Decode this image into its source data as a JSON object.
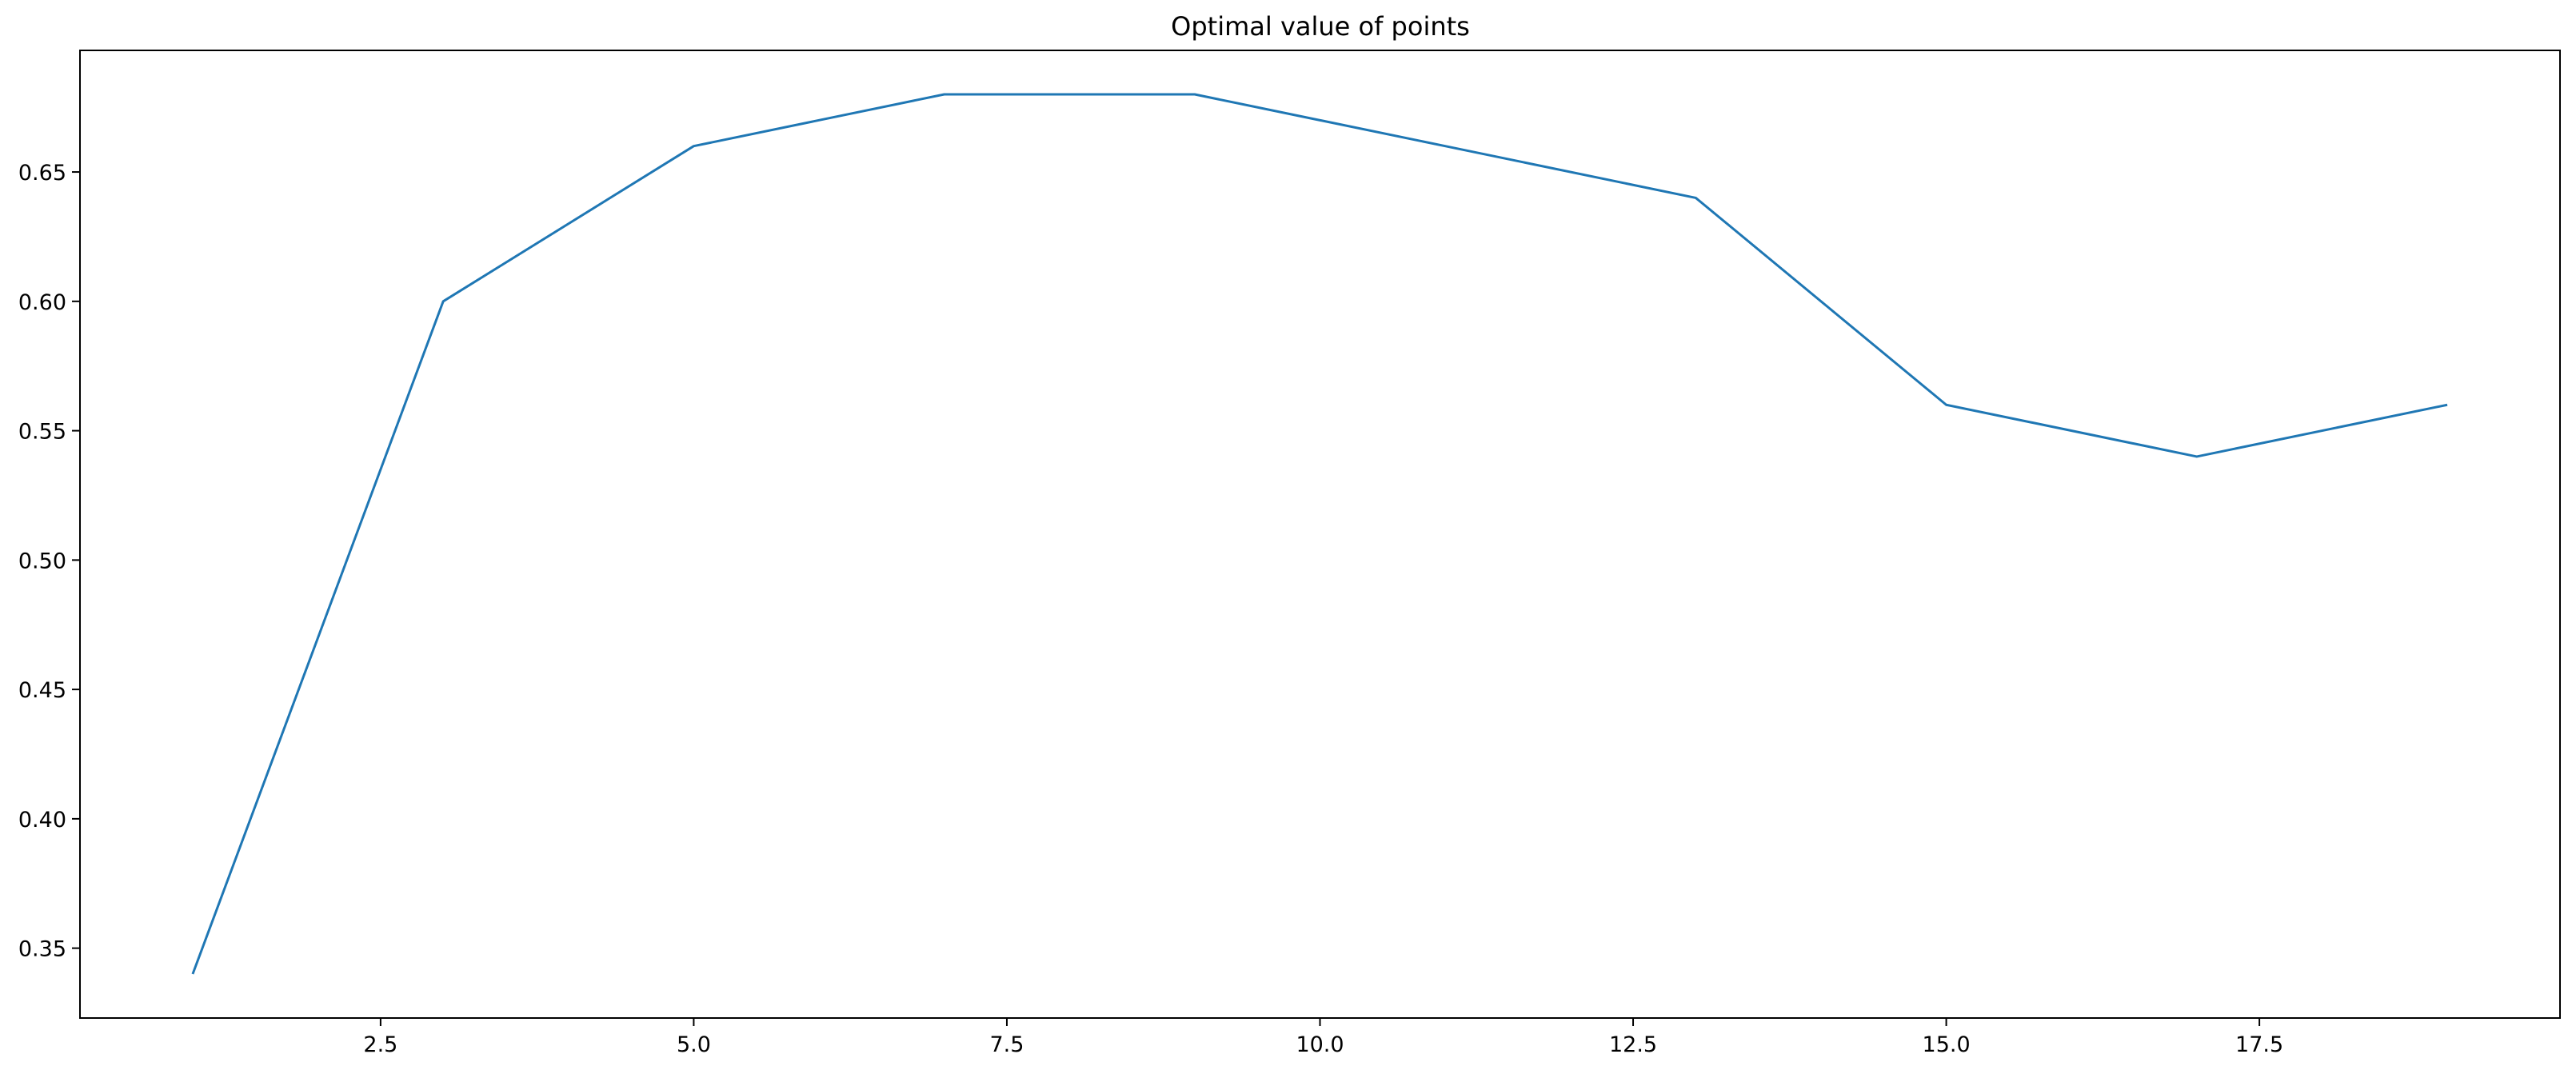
{
  "chart_data": {
    "type": "line",
    "title": "Optimal value of points",
    "xlabel": "",
    "ylabel": "",
    "xlim": [
      0.1,
      19.9
    ],
    "ylim": [
      0.323,
      0.697
    ],
    "x_ticks": [
      2.5,
      5.0,
      7.5,
      10.0,
      12.5,
      15.0,
      17.5
    ],
    "x_tick_labels": [
      "2.5",
      "5.0",
      "7.5",
      "10.0",
      "12.5",
      "15.0",
      "17.5"
    ],
    "y_ticks": [
      0.35,
      0.4,
      0.45,
      0.5,
      0.55,
      0.6,
      0.65
    ],
    "y_tick_labels": [
      "0.35",
      "0.40",
      "0.45",
      "0.50",
      "0.55",
      "0.60",
      "0.65"
    ],
    "grid": false,
    "legend": "none",
    "series": [
      {
        "color": "#1f77b4",
        "x": [
          1,
          3,
          5,
          7,
          9,
          11,
          13,
          15,
          17,
          19
        ],
        "y": [
          0.34,
          0.6,
          0.66,
          0.68,
          0.68,
          0.66,
          0.64,
          0.56,
          0.54,
          0.56
        ]
      }
    ]
  }
}
